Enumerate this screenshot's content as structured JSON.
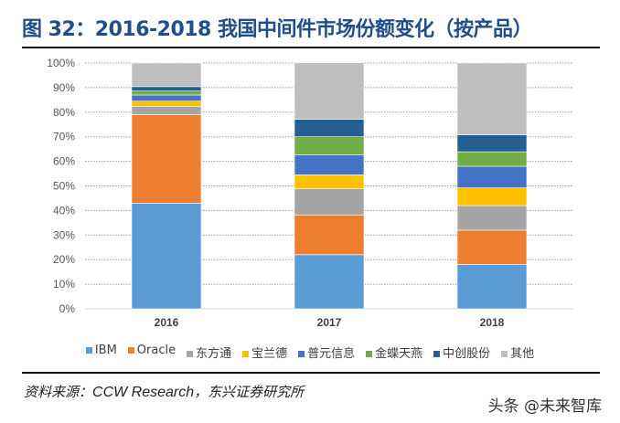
{
  "title": "图 32：2016-2018 我国中间件市场份额变化（按产品）",
  "source_label": "资料来源：",
  "source_en": "CCW Research",
  "source_cn": "，东兴证券研究所",
  "watermark": "头条 @未来智库",
  "chart_data": {
    "type": "bar",
    "stacked": true,
    "percent": true,
    "categories": [
      "2016",
      "2017",
      "2018"
    ],
    "ylim": [
      0,
      100
    ],
    "yticks": [
      "0%",
      "10%",
      "20%",
      "30%",
      "40%",
      "50%",
      "60%",
      "70%",
      "80%",
      "90%",
      "100%"
    ],
    "grid": true,
    "legend_position": "bottom",
    "series": [
      {
        "name": "IBM",
        "color": "#5b9bd5",
        "values": [
          43.0,
          22.0,
          18.0
        ]
      },
      {
        "name": "Oracle",
        "color": "#ed7d31",
        "values": [
          36.0,
          16.2,
          14.0
        ]
      },
      {
        "name": "东方通",
        "color": "#a5a5a5",
        "values": [
          3.4,
          10.6,
          10.0
        ]
      },
      {
        "name": "宝兰德",
        "color": "#ffc000",
        "values": [
          2.1,
          5.7,
          7.2
        ]
      },
      {
        "name": "普元信息",
        "color": "#4472c4",
        "values": [
          2.5,
          8.1,
          8.8
        ]
      },
      {
        "name": "金蝶天燕",
        "color": "#70ad47",
        "values": [
          1.6,
          7.4,
          5.9
        ]
      },
      {
        "name": "中创股份",
        "color": "#255e91",
        "values": [
          1.8,
          7.1,
          6.9
        ]
      },
      {
        "name": "其他",
        "color": "#bfbfbf",
        "values": [
          9.6,
          23.0,
          29.2
        ]
      }
    ]
  }
}
